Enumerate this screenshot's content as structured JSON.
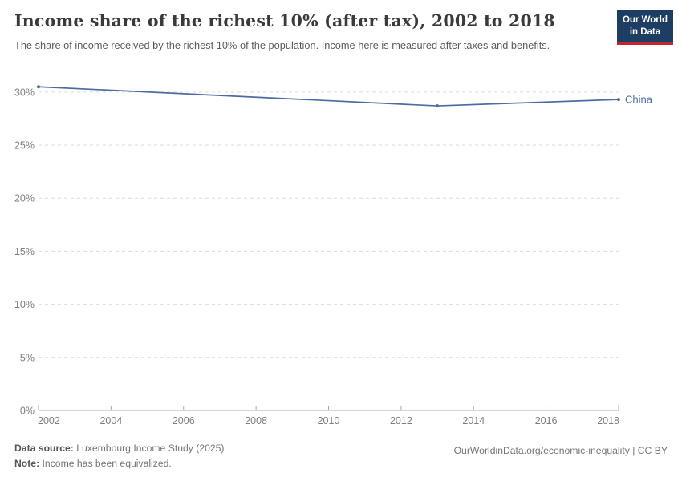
{
  "header": {
    "title": "Income share of the richest 10% (after tax), 2002 to 2018",
    "subtitle": "The share of income received by the richest 10% of the population. Income here is measured after taxes and benefits.",
    "logo": {
      "line1": "Our World",
      "line2": "in Data",
      "bg_color": "#1d3d63",
      "accent_color": "#c0272d"
    }
  },
  "chart_data": {
    "type": "line",
    "title": "Income share of the richest 10% (after tax), 2002 to 2018",
    "xlabel": "",
    "ylabel": "",
    "xlim": [
      2002,
      2018
    ],
    "ylim": [
      0,
      31.5
    ],
    "x_ticks": [
      2002,
      2004,
      2006,
      2008,
      2010,
      2012,
      2014,
      2016,
      2018
    ],
    "y_ticks": [
      0,
      5,
      10,
      15,
      20,
      25,
      30
    ],
    "y_tick_suffix": "%",
    "grid": "horizontal-dashed",
    "legend_position": "end-of-line-label",
    "series": [
      {
        "name": "China",
        "color": "#4d6ba3",
        "points": [
          {
            "x": 2002,
            "y": 30.5
          },
          {
            "x": 2013,
            "y": 28.7
          },
          {
            "x": 2018,
            "y": 29.3
          }
        ]
      }
    ],
    "colors": {
      "gridline": "#dcdcdc",
      "axis": "#a8a8a8",
      "tick_label": "#7d7d7d"
    }
  },
  "footer": {
    "datasource_label": "Data source:",
    "datasource_value": " Luxembourg Income Study (2025)",
    "note_label": "Note:",
    "note_value": " Income has been equivalized.",
    "rights": "OurWorldinData.org/economic-inequality | CC BY"
  }
}
